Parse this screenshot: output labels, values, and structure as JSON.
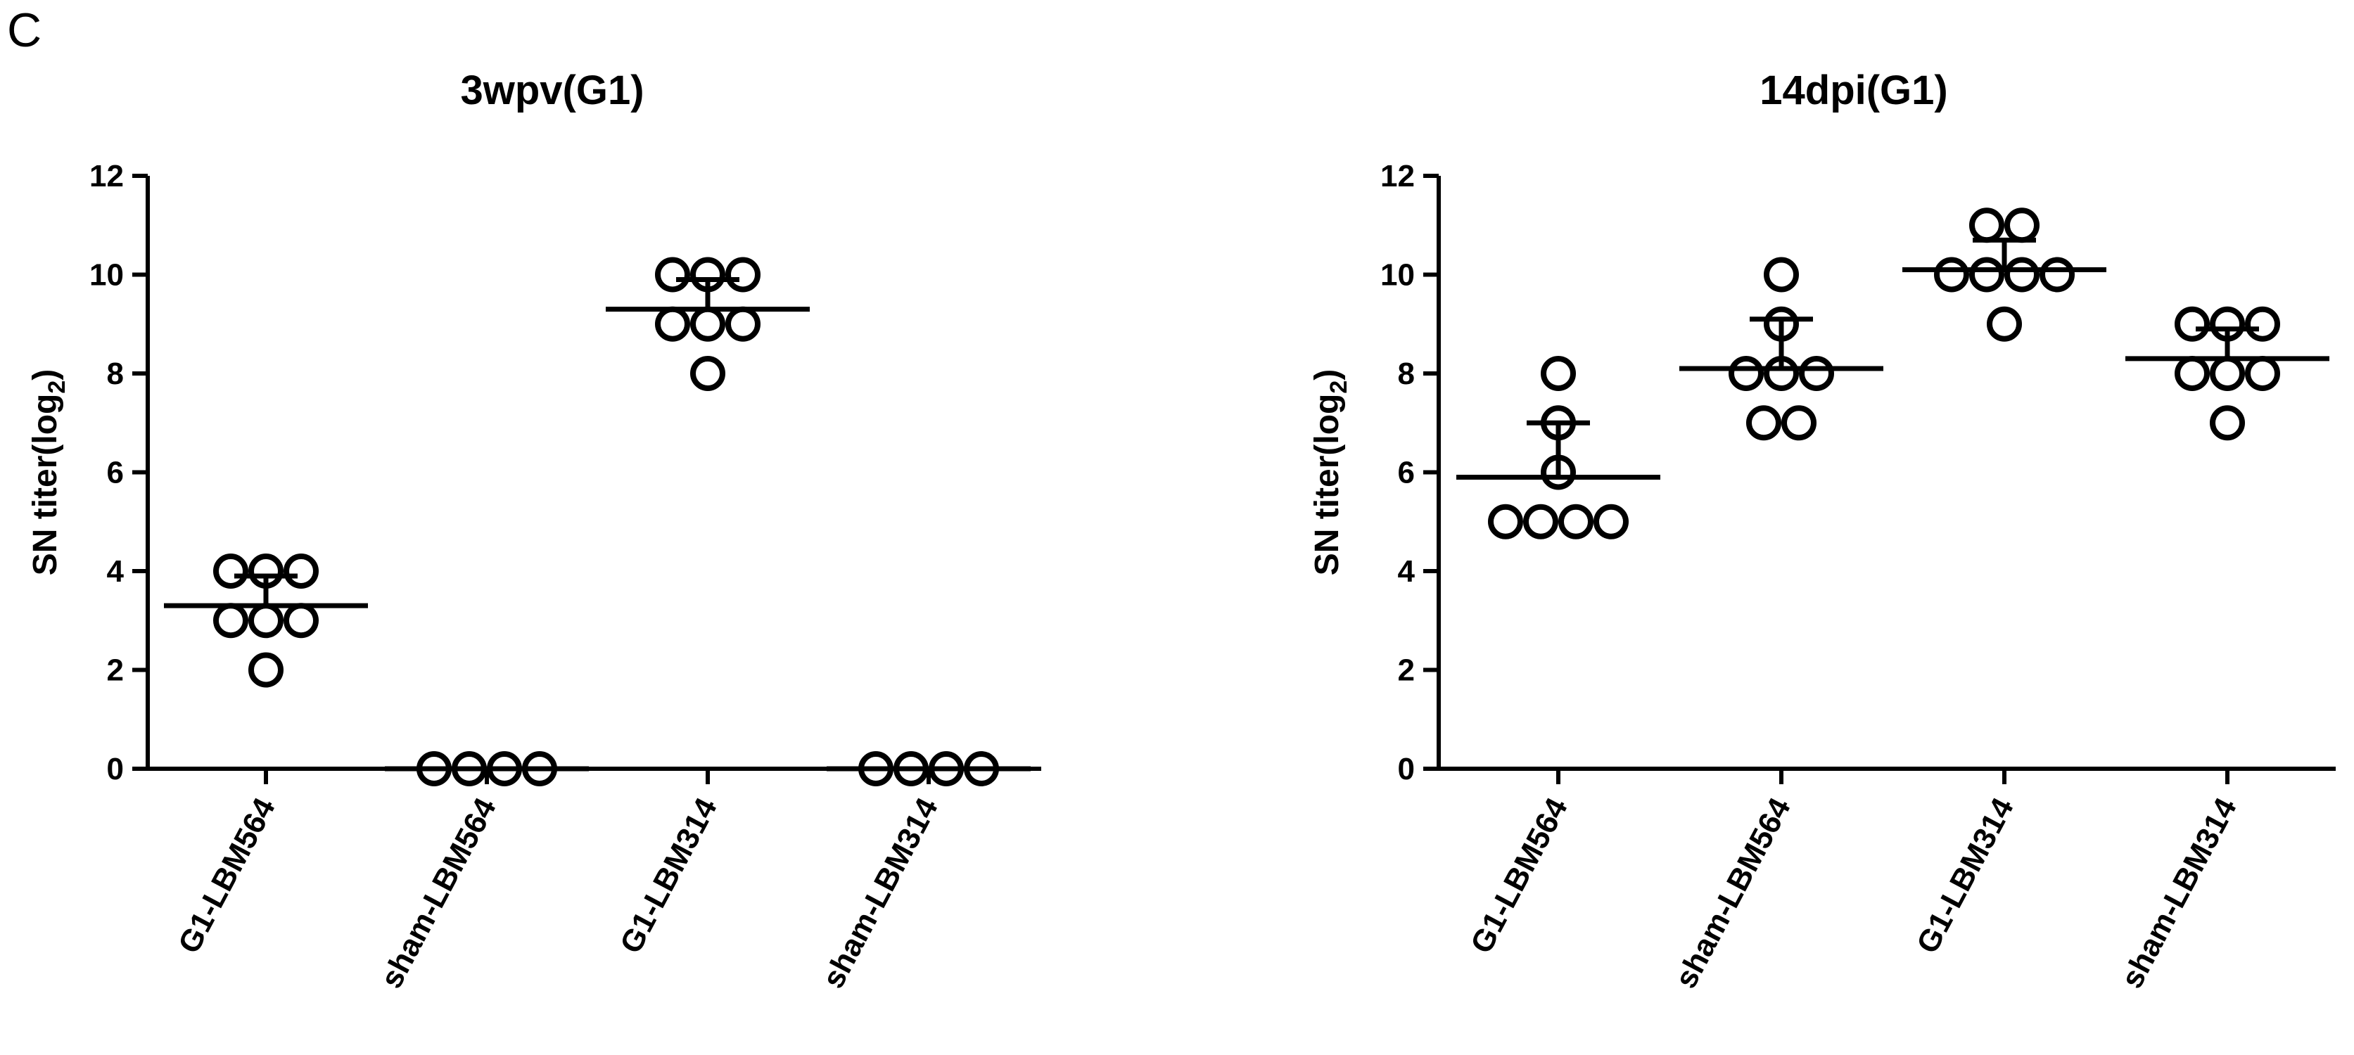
{
  "figure": {
    "panel_letter": "C"
  },
  "chart_data": [
    {
      "type": "scatter",
      "title": "3wpv(G1)",
      "ylabel_main": "SN titer(log",
      "ylabel_sub": "2",
      "ylabel_close": ")",
      "ylim": [
        0,
        12
      ],
      "yticks": [
        0,
        2,
        4,
        6,
        8,
        10,
        12
      ],
      "categories": [
        "G1-LBM564",
        "sham-LBM564",
        "G1-LBM314",
        "sham-LBM314"
      ],
      "groups": [
        {
          "name": "G1-LBM564",
          "points": [
            4,
            4,
            4,
            3,
            3,
            3,
            2
          ],
          "mean": 3.3,
          "sd": 0.6
        },
        {
          "name": "sham-LBM564",
          "points": [
            0,
            0,
            0,
            0
          ],
          "mean": 0,
          "sd": 0
        },
        {
          "name": "G1-LBM314",
          "points": [
            10,
            10,
            10,
            9,
            9,
            9,
            8
          ],
          "mean": 9.3,
          "sd": 0.6
        },
        {
          "name": "sham-LBM314",
          "points": [
            0,
            0,
            0,
            0
          ],
          "mean": 0,
          "sd": 0
        }
      ]
    },
    {
      "type": "scatter",
      "title": "14dpi(G1)",
      "ylabel_main": "SN titer(log",
      "ylabel_sub": "2",
      "ylabel_close": ")",
      "ylim": [
        0,
        12
      ],
      "yticks": [
        0,
        2,
        4,
        6,
        8,
        10,
        12
      ],
      "categories": [
        "G1-LBM564",
        "sham-LBM564",
        "G1-LBM314",
        "sham-LBM314"
      ],
      "groups": [
        {
          "name": "G1-LBM564",
          "points": [
            8,
            7,
            6,
            5,
            5,
            5,
            5
          ],
          "mean": 5.9,
          "sd": 1.1
        },
        {
          "name": "sham-LBM564",
          "points": [
            10,
            9,
            8,
            8,
            8,
            7,
            7
          ],
          "mean": 8.1,
          "sd": 1.0
        },
        {
          "name": "G1-LBM314",
          "points": [
            11,
            11,
            10,
            10,
            10,
            10,
            9
          ],
          "mean": 10.1,
          "sd": 0.6
        },
        {
          "name": "sham-LBM314",
          "points": [
            9,
            9,
            9,
            8,
            8,
            8,
            7
          ],
          "mean": 8.3,
          "sd": 0.6
        }
      ]
    }
  ]
}
